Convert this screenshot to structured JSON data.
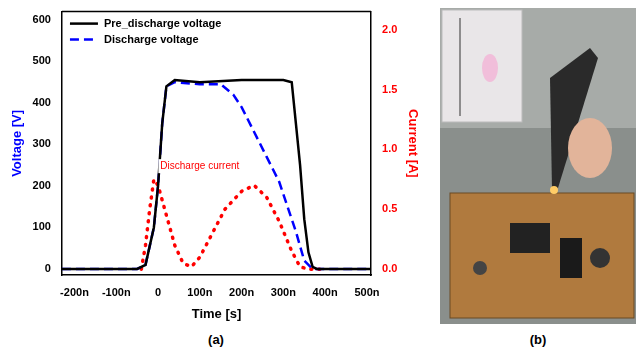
{
  "chart_data": {
    "type": "line",
    "panel_label": "(a)",
    "x_label": "Time [s]",
    "y_label": "Voltage [V]",
    "y2_label": "Current [A]",
    "xlim": [
      -2.3e-07,
      5.1e-07
    ],
    "xticks": [
      {
        "value": -2e-07,
        "label": "-200n"
      },
      {
        "value": -1e-07,
        "label": "-100n"
      },
      0,
      {
        "value": 1e-07,
        "label": "100n"
      },
      {
        "value": 2e-07,
        "label": "200n"
      },
      {
        "value": 3e-07,
        "label": "300n"
      },
      {
        "value": 4e-07,
        "label": "400n"
      },
      {
        "value": 5e-07,
        "label": "500n"
      }
    ],
    "ylim": [
      -15,
      620
    ],
    "yticks": [
      0,
      100,
      200,
      300,
      400,
      500,
      600
    ],
    "y2lim": [
      -0.05,
      2.15
    ],
    "y2ticks": [
      {
        "value": 0,
        "label": "0.0"
      },
      {
        "value": 0.5,
        "label": "0.5"
      },
      {
        "value": 1,
        "label": "1.0"
      },
      {
        "value": 1.5,
        "label": "1.5"
      },
      {
        "value": 2,
        "label": "2.0"
      }
    ],
    "grid": false,
    "legend": "upper left",
    "series": [
      {
        "name": "Pre_discharge voltage",
        "color": "#000000",
        "line_style": "solid",
        "x": [
          -2.3e-07,
          -5e-08,
          -3e-08,
          -1e-08,
          0,
          1e-08,
          2e-08,
          4e-08,
          1e-07,
          2e-07,
          3e-07,
          3.2e-07,
          3.3e-07,
          3.4e-07,
          3.5e-07,
          3.6e-07,
          3.7e-07,
          3.8e-07,
          5.1e-07
        ],
        "values": [
          0,
          0,
          10,
          100,
          200,
          350,
          440,
          455,
          450,
          455,
          455,
          450,
          350,
          250,
          120,
          40,
          5,
          0,
          0
        ]
      },
      {
        "name": "Discharge voltage",
        "color": "#0000ff",
        "line_style": "dashed",
        "x": [
          -2.3e-07,
          -5e-08,
          -3e-08,
          -1e-08,
          0,
          1e-08,
          2e-08,
          4e-08,
          1e-07,
          1.5e-07,
          1.8e-07,
          2e-07,
          2.3e-07,
          2.6e-07,
          2.9e-07,
          3.1e-07,
          3.3e-07,
          3.5e-07,
          3.7e-07,
          5.1e-07
        ],
        "values": [
          0,
          0,
          10,
          100,
          200,
          350,
          440,
          450,
          445,
          445,
          420,
          390,
          330,
          270,
          210,
          150,
          90,
          20,
          0,
          0
        ]
      },
      {
        "color": "#ff0000",
        "line_style": "dotted",
        "axis": "y2",
        "x": [
          -4e-08,
          -3e-08,
          -2e-08,
          -1e-08,
          0,
          2e-08,
          4e-08,
          6e-08,
          8e-08,
          1e-07,
          1.3e-07,
          1.6e-07,
          2e-07,
          2.3e-07,
          2.6e-07,
          2.9e-07,
          3.2e-07,
          3.4e-07,
          3.6e-07,
          4e-07
        ],
        "values": [
          0,
          0.2,
          0.5,
          0.75,
          0.7,
          0.45,
          0.2,
          0.05,
          0.02,
          0.1,
          0.3,
          0.5,
          0.65,
          0.7,
          0.6,
          0.4,
          0.15,
          0.02,
          0,
          0
        ]
      }
    ],
    "annotations": [
      {
        "text": "Discharge current",
        "x": 1e-07,
        "y": 0.86,
        "axis": "y2",
        "color": "#ff0000"
      }
    ]
  },
  "photo": {
    "panel_label": "(b)"
  }
}
